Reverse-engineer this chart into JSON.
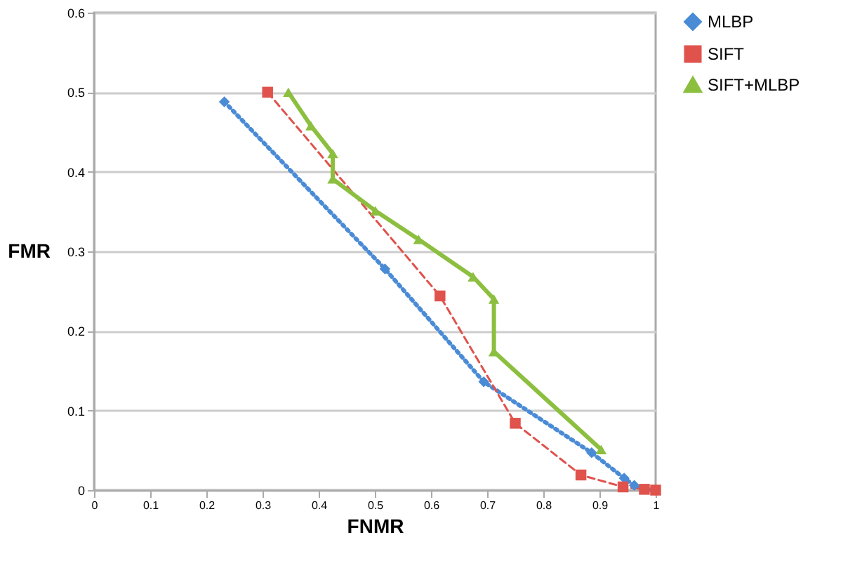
{
  "chart_data": {
    "type": "line",
    "xlabel": "FNMR",
    "ylabel": "FMR",
    "xlim": [
      0,
      1
    ],
    "ylim": [
      0,
      0.6
    ],
    "xticks": [
      0,
      0.1,
      0.2,
      0.3,
      0.4,
      0.5,
      0.6,
      0.7,
      0.8,
      0.9,
      1
    ],
    "yticks": [
      0,
      0.1,
      0.2,
      0.3,
      0.4,
      0.5,
      0.6
    ],
    "grid": "y",
    "legend": "right",
    "series": [
      {
        "name": "MLBP",
        "color": "#4a8bd6",
        "marker": "diamond",
        "line_style": "dotted",
        "x": [
          0.232,
          0.518,
          0.694,
          0.886,
          0.944,
          0.962,
          0.981,
          1
        ],
        "values": [
          0.488,
          0.278,
          0.136,
          0.047,
          0.015,
          0.006,
          0.001,
          0
        ]
      },
      {
        "name": "SIFT",
        "color": "#e0524c",
        "marker": "square",
        "line_style": "dashed",
        "x": [
          0.309,
          0.616,
          0.75,
          0.867,
          0.942,
          0.98,
          1
        ],
        "values": [
          0.5,
          0.244,
          0.084,
          0.019,
          0.004,
          0.001,
          0
        ]
      },
      {
        "name": "SIFT+MLBP",
        "color": "#8cbf3f",
        "marker": "triangle",
        "line_style": "solid",
        "x": [
          0.346,
          0.386,
          0.425,
          0.425,
          0.501,
          0.578,
          0.675,
          0.712,
          0.712,
          0.903
        ],
        "values": [
          0.5,
          0.458,
          0.423,
          0.391,
          0.351,
          0.315,
          0.268,
          0.24,
          0.174,
          0.051
        ]
      }
    ]
  }
}
